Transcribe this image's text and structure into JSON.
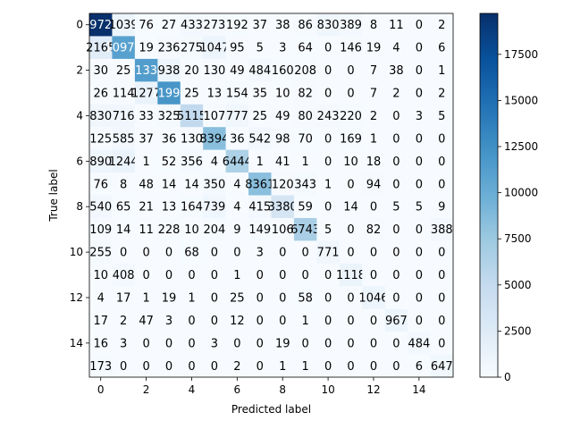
{
  "chart_data": {
    "type": "heatmap",
    "title": "",
    "xlabel": "Predicted label",
    "ylabel": "True label",
    "x_ticks": [
      0,
      2,
      4,
      6,
      8,
      10,
      12,
      14
    ],
    "y_ticks": [
      0,
      2,
      4,
      6,
      8,
      10,
      12,
      14
    ],
    "colormap": "Blues",
    "vmin": 0,
    "vmax": 19720,
    "colorbar_ticks": [
      0,
      2500,
      5000,
      7500,
      10000,
      12500,
      15000,
      17500
    ],
    "matrix": [
      [
        19720,
        1039,
        76,
        27,
        433,
        273,
        192,
        37,
        38,
        86,
        830,
        389,
        8,
        11,
        0,
        2
      ],
      [
        2165,
        10979,
        19,
        236,
        275,
        1047,
        95,
        5,
        3,
        64,
        0,
        146,
        19,
        4,
        0,
        6
      ],
      [
        30,
        25,
        11331,
        938,
        20,
        130,
        49,
        484,
        160,
        208,
        0,
        0,
        7,
        38,
        0,
        1
      ],
      [
        26,
        114,
        1277,
        11991,
        25,
        13,
        154,
        35,
        10,
        82,
        0,
        0,
        7,
        2,
        0,
        2
      ],
      [
        830,
        716,
        33,
        325,
        5115,
        107,
        777,
        25,
        49,
        80,
        243,
        220,
        2,
        0,
        3,
        5
      ],
      [
        125,
        585,
        37,
        36,
        130,
        8394,
        36,
        542,
        98,
        70,
        0,
        169,
        1,
        0,
        0,
        0
      ],
      [
        890,
        1244,
        1,
        52,
        356,
        4,
        6444,
        1,
        41,
        1,
        0,
        10,
        18,
        0,
        0,
        0
      ],
      [
        76,
        8,
        48,
        14,
        14,
        350,
        4,
        8361,
        120,
        343,
        1,
        0,
        94,
        0,
        0,
        0
      ],
      [
        540,
        65,
        21,
        13,
        164,
        739,
        4,
        415,
        3380,
        59,
        0,
        14,
        0,
        5,
        5,
        9
      ],
      [
        109,
        14,
        11,
        228,
        10,
        204,
        9,
        149,
        106,
        6743,
        5,
        0,
        82,
        0,
        0,
        388
      ],
      [
        255,
        0,
        0,
        0,
        68,
        0,
        0,
        3,
        0,
        0,
        771,
        0,
        0,
        0,
        0,
        0
      ],
      [
        10,
        408,
        0,
        0,
        0,
        0,
        1,
        0,
        0,
        0,
        0,
        1118,
        0,
        0,
        0,
        0
      ],
      [
        4,
        17,
        1,
        19,
        1,
        0,
        25,
        0,
        0,
        58,
        0,
        0,
        1046,
        0,
        0,
        0
      ],
      [
        17,
        2,
        47,
        3,
        0,
        0,
        12,
        0,
        0,
        1,
        0,
        0,
        0,
        967,
        0,
        0
      ],
      [
        16,
        3,
        0,
        0,
        0,
        3,
        0,
        0,
        19,
        0,
        0,
        0,
        0,
        0,
        484,
        0
      ],
      [
        173,
        0,
        0,
        0,
        0,
        0,
        2,
        0,
        1,
        1,
        0,
        0,
        0,
        0,
        6,
        647
      ]
    ]
  }
}
